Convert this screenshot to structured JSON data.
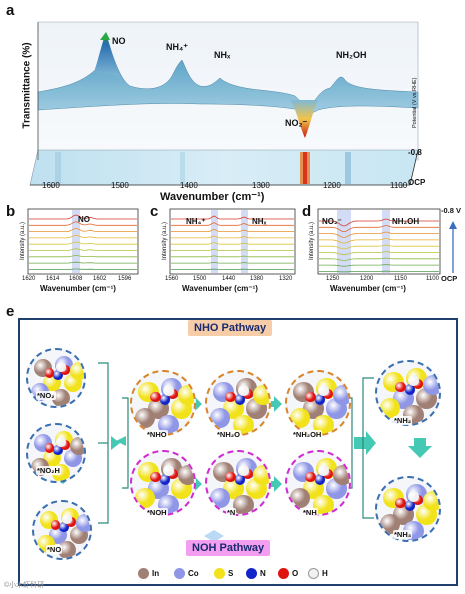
{
  "panel_a": {
    "letter": "a",
    "ylabel": "Transmittance (%)",
    "xlabel": "Wavenumber (cm⁻¹)",
    "xticks": [
      "1600",
      "1500",
      "1400",
      "1300",
      "1200",
      "1100"
    ],
    "peaks": {
      "no": "NO",
      "nh4": "NH₄⁺",
      "nhx": "NHₓ",
      "nh2oh": "NH₂OH",
      "no2": "NO₂⁻"
    },
    "potential_axis": "Potential (V vs.RHE)",
    "pot_top": "-0.8",
    "pot_bottom": "OCP"
  },
  "panel_b": {
    "letter": "b",
    "label": "NO",
    "xlabel": "Wavenumber (cm⁻¹)",
    "ylabel": "Intensity (a.u.)",
    "xticks": [
      "1620",
      "1614",
      "1608",
      "1602",
      "1596"
    ]
  },
  "panel_c": {
    "letter": "c",
    "label_a": "NH₄⁺",
    "label_b": "NHₓ",
    "xlabel": "Wavenumber (cm⁻¹)",
    "ylabel": "Intensity (a.u.)",
    "xticks": [
      "1560",
      "1500",
      "1440",
      "1380",
      "1320"
    ]
  },
  "panel_d": {
    "letter": "d",
    "label_a": "NO₂⁻",
    "label_b": "NH₂OH",
    "xlabel": "Wavenumber (cm⁻¹)",
    "ylabel": "Intensity (a.u.)",
    "xticks": [
      "1250",
      "1200",
      "1150",
      "1100"
    ],
    "pot_top": "-0.8 V",
    "pot_bottom": "OCP"
  },
  "panel_e": {
    "letter": "e",
    "nho_title": "NHO Pathway",
    "noh_title": "NOH Pathway",
    "species": {
      "no2": "*NO₂",
      "no2h": "*NO₂H",
      "no": "*NO",
      "nho": "*NHO",
      "nh2o": "*NH₂O",
      "nh2oh": "*NH₂OH",
      "noh": "*NOH",
      "n": "*N",
      "nh": "*NH",
      "nh2": "*NH₂",
      "nh3": "*NH₃"
    },
    "legend": [
      {
        "label": "In",
        "color": "#a07f74"
      },
      {
        "label": "Co",
        "color": "#8f96e6"
      },
      {
        "label": "S",
        "color": "#f2e21a"
      },
      {
        "label": "N",
        "color": "#1225c9"
      },
      {
        "label": "O",
        "color": "#e0120e"
      },
      {
        "label": "H",
        "color": "#f1f1f1"
      }
    ]
  },
  "watermark": "©小木虾科研"
}
